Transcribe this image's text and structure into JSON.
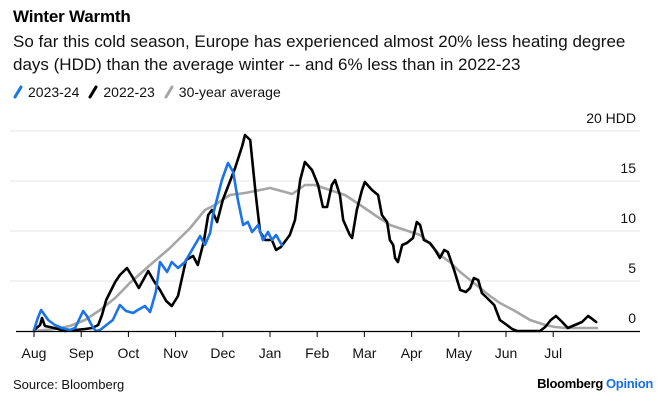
{
  "header": {
    "title": "Winter Warmth",
    "subtitle": "So far this cold season, Europe has experienced almost 20% less heating degree days (HDD) than the average winter -- and 6% less than in 2022-23"
  },
  "legend": [
    {
      "label": "2023-24",
      "color": "#1a73e8"
    },
    {
      "label": "2022-23",
      "color": "#000000"
    },
    {
      "label": "30-year average",
      "color": "#a6a6a6"
    }
  ],
  "footer": {
    "source": "Source: Bloomberg",
    "brand": "Bloomberg",
    "brand_suffix": "Opinion"
  },
  "chart_data": {
    "type": "line",
    "title": "Winter Warmth",
    "xlabel": "",
    "ylabel": "HDD",
    "x_unit": "months since start of August",
    "xlim": [
      0,
      12
    ],
    "ylim": [
      0,
      20
    ],
    "y_ticks": [
      {
        "value": 20,
        "label": "20 HDD"
      },
      {
        "value": 15,
        "label": "15"
      },
      {
        "value": 10,
        "label": "10"
      },
      {
        "value": 5,
        "label": "5"
      },
      {
        "value": 0,
        "label": "0"
      }
    ],
    "x_ticks": [
      {
        "value": 0,
        "label": "Aug"
      },
      {
        "value": 1,
        "label": "Sep"
      },
      {
        "value": 2,
        "label": "Oct"
      },
      {
        "value": 3,
        "label": "Nov"
      },
      {
        "value": 4,
        "label": "Dec"
      },
      {
        "value": 5,
        "label": "Jan"
      },
      {
        "value": 6,
        "label": "Feb"
      },
      {
        "value": 7,
        "label": "Mar"
      },
      {
        "value": 8,
        "label": "Apr"
      },
      {
        "value": 9,
        "label": "May"
      },
      {
        "value": 10,
        "label": "Jun"
      },
      {
        "value": 11,
        "label": "Jul"
      }
    ],
    "grid": true,
    "y_axis_side": "right",
    "legend_position": "top-left",
    "series": [
      {
        "name": "30-year average",
        "color": "#a6a6a6",
        "points": [
          [
            0,
            0
          ],
          [
            0.44,
            0.2
          ],
          [
            0.76,
            0.5
          ],
          [
            1.08,
            1.1
          ],
          [
            1.4,
            2.1
          ],
          [
            1.72,
            3.3
          ],
          [
            2.03,
            4.8
          ],
          [
            2.46,
            6.6
          ],
          [
            2.88,
            8.3
          ],
          [
            3.31,
            10.3
          ],
          [
            3.62,
            12.1
          ],
          [
            3.83,
            12.6
          ],
          [
            4.15,
            13.6
          ],
          [
            4.47,
            13.8
          ],
          [
            4.79,
            14.1
          ],
          [
            5.0,
            14.3
          ],
          [
            5.32,
            13.9
          ],
          [
            5.47,
            13.7
          ],
          [
            5.74,
            14.6
          ],
          [
            5.95,
            14.6
          ],
          [
            6.27,
            14.1
          ],
          [
            6.59,
            13.6
          ],
          [
            6.91,
            12.6
          ],
          [
            7.22,
            11.6
          ],
          [
            7.54,
            10.6
          ],
          [
            7.86,
            10.1
          ],
          [
            8.18,
            9.6
          ],
          [
            8.39,
            8.7
          ],
          [
            8.6,
            7.6
          ],
          [
            8.81,
            6.9
          ],
          [
            9.03,
            5.9
          ],
          [
            9.24,
            5.1
          ],
          [
            9.45,
            4.3
          ],
          [
            9.66,
            3.5
          ],
          [
            9.87,
            2.8
          ],
          [
            10.19,
            2.0
          ],
          [
            10.51,
            1.1
          ],
          [
            10.83,
            0.6
          ],
          [
            11.04,
            0.4
          ],
          [
            11.25,
            0.3
          ],
          [
            11.57,
            0.3
          ],
          [
            11.93,
            0.3
          ]
        ]
      },
      {
        "name": "2022-23",
        "color": "#000000",
        "points": [
          [
            0,
            0.1
          ],
          [
            0.13,
            0.6
          ],
          [
            0.17,
            1.3
          ],
          [
            0.23,
            0.5
          ],
          [
            0.34,
            0.4
          ],
          [
            0.51,
            0.2
          ],
          [
            0.66,
            0
          ],
          [
            0.87,
            0.1
          ],
          [
            1.08,
            0.2
          ],
          [
            1.23,
            0.3
          ],
          [
            1.36,
            0.6
          ],
          [
            1.44,
            1.6
          ],
          [
            1.53,
            3.1
          ],
          [
            1.72,
            4.9
          ],
          [
            1.82,
            5.6
          ],
          [
            1.97,
            6.3
          ],
          [
            2.1,
            5.3
          ],
          [
            2.22,
            4.3
          ],
          [
            2.42,
            6.0
          ],
          [
            2.54,
            5.0
          ],
          [
            2.67,
            4.1
          ],
          [
            2.8,
            3.0
          ],
          [
            2.92,
            2.5
          ],
          [
            3.05,
            3.5
          ],
          [
            3.22,
            7.1
          ],
          [
            3.37,
            7.5
          ],
          [
            3.47,
            6.6
          ],
          [
            3.6,
            9.0
          ],
          [
            3.69,
            11.6
          ],
          [
            3.77,
            12.1
          ],
          [
            3.88,
            10.9
          ],
          [
            4.0,
            13.1
          ],
          [
            4.26,
            16.3
          ],
          [
            4.41,
            18.5
          ],
          [
            4.47,
            19.6
          ],
          [
            4.58,
            19.1
          ],
          [
            4.7,
            13.6
          ],
          [
            4.79,
            9.9
          ],
          [
            4.9,
            9.1
          ],
          [
            5.04,
            9.1
          ],
          [
            5.13,
            8.1
          ],
          [
            5.23,
            8.4
          ],
          [
            5.42,
            9.6
          ],
          [
            5.53,
            11.1
          ],
          [
            5.64,
            15.1
          ],
          [
            5.74,
            16.9
          ],
          [
            5.89,
            16.1
          ],
          [
            6.02,
            14.6
          ],
          [
            6.12,
            12.4
          ],
          [
            6.21,
            12.4
          ],
          [
            6.31,
            14.6
          ],
          [
            6.38,
            15.1
          ],
          [
            6.48,
            13.6
          ],
          [
            6.55,
            11.1
          ],
          [
            6.69,
            9.6
          ],
          [
            6.74,
            9.3
          ],
          [
            6.84,
            12.1
          ],
          [
            6.95,
            14.1
          ],
          [
            7.01,
            14.9
          ],
          [
            7.16,
            14.1
          ],
          [
            7.29,
            13.6
          ],
          [
            7.37,
            11.6
          ],
          [
            7.48,
            10.9
          ],
          [
            7.54,
            9.1
          ],
          [
            7.61,
            8.6
          ],
          [
            7.65,
            7.3
          ],
          [
            7.71,
            6.9
          ],
          [
            7.8,
            8.6
          ],
          [
            7.9,
            8.8
          ],
          [
            8.03,
            9.3
          ],
          [
            8.11,
            10.9
          ],
          [
            8.18,
            10.6
          ],
          [
            8.26,
            9.1
          ],
          [
            8.39,
            8.8
          ],
          [
            8.5,
            8.1
          ],
          [
            8.6,
            7.3
          ],
          [
            8.69,
            8.1
          ],
          [
            8.77,
            7.9
          ],
          [
            8.9,
            6.1
          ],
          [
            9.03,
            4.1
          ],
          [
            9.15,
            3.9
          ],
          [
            9.24,
            4.3
          ],
          [
            9.32,
            5.3
          ],
          [
            9.41,
            5.1
          ],
          [
            9.49,
            3.8
          ],
          [
            9.6,
            3.3
          ],
          [
            9.75,
            2.6
          ],
          [
            9.87,
            1.1
          ],
          [
            10.02,
            0.6
          ],
          [
            10.13,
            0.2
          ],
          [
            10.23,
            0
          ],
          [
            10.72,
            0
          ],
          [
            10.83,
            0.4
          ],
          [
            10.95,
            1.1
          ],
          [
            11.06,
            1.5
          ],
          [
            11.19,
            0.9
          ],
          [
            11.31,
            0.3
          ],
          [
            11.46,
            0.6
          ],
          [
            11.61,
            0.9
          ],
          [
            11.74,
            1.5
          ],
          [
            11.8,
            1.3
          ],
          [
            11.91,
            0.9
          ]
        ]
      },
      {
        "name": "2023-24",
        "color": "#1a73e8",
        "points": [
          [
            0,
            0.1
          ],
          [
            0.08,
            1.3
          ],
          [
            0.15,
            2.1
          ],
          [
            0.21,
            1.7
          ],
          [
            0.3,
            1.1
          ],
          [
            0.44,
            0.6
          ],
          [
            0.59,
            0.3
          ],
          [
            0.76,
            0.1
          ],
          [
            0.87,
            0.3
          ],
          [
            0.97,
            1.3
          ],
          [
            1.04,
            2.0
          ],
          [
            1.12,
            1.5
          ],
          [
            1.23,
            0.5
          ],
          [
            1.31,
            0
          ],
          [
            1.4,
            0.1
          ],
          [
            1.67,
            1.1
          ],
          [
            1.82,
            2.6
          ],
          [
            1.95,
            2.0
          ],
          [
            2.1,
            1.8
          ],
          [
            2.2,
            2.1
          ],
          [
            2.35,
            2.5
          ],
          [
            2.46,
            1.9
          ],
          [
            2.58,
            3.9
          ],
          [
            2.67,
            6.9
          ],
          [
            2.82,
            5.9
          ],
          [
            2.92,
            6.9
          ],
          [
            3.05,
            6.3
          ],
          [
            3.2,
            6.9
          ],
          [
            3.37,
            8.3
          ],
          [
            3.52,
            9.5
          ],
          [
            3.62,
            8.6
          ],
          [
            3.73,
            9.8
          ],
          [
            3.79,
            11.6
          ],
          [
            3.98,
            15.1
          ],
          [
            4.11,
            16.8
          ],
          [
            4.22,
            15.9
          ],
          [
            4.32,
            13.1
          ],
          [
            4.43,
            10.6
          ],
          [
            4.53,
            10.9
          ],
          [
            4.62,
            9.9
          ],
          [
            4.75,
            10.6
          ],
          [
            4.85,
            9.1
          ],
          [
            4.96,
            9.9
          ],
          [
            5.04,
            9.1
          ],
          [
            5.13,
            9.6
          ],
          [
            5.25,
            8.6
          ]
        ]
      }
    ]
  }
}
